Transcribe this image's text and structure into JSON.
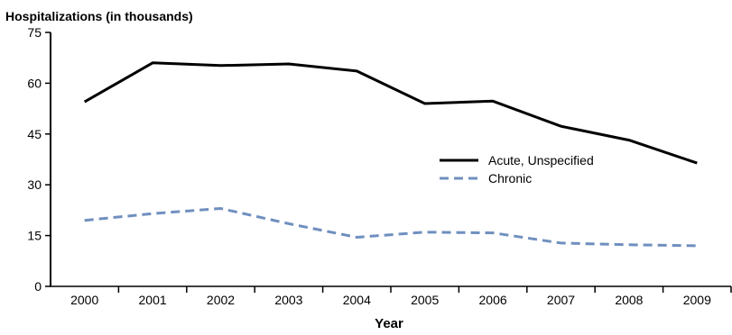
{
  "chart_data": {
    "type": "line",
    "title": "",
    "ylabel": "Hospitalizations (in thousands)",
    "xlabel": "Year",
    "ylim": [
      0,
      75
    ],
    "yticks": [
      "0",
      "15",
      "30",
      "45",
      "60",
      "75"
    ],
    "categories": [
      "2000",
      "2001",
      "2002",
      "2003",
      "2004",
      "2005",
      "2006",
      "2007",
      "2008",
      "2009"
    ],
    "series": [
      {
        "name": "Acute, Unspecified",
        "color": "#000000",
        "style": "solid",
        "values": [
          54.5,
          66.0,
          65.2,
          65.7,
          63.6,
          54.0,
          54.7,
          47.3,
          43.2,
          36.4
        ]
      },
      {
        "name": "Chronic",
        "color": "#6f8fbf",
        "style": "dashed",
        "values": [
          19.5,
          21.5,
          23.0,
          18.5,
          14.5,
          16.0,
          15.8,
          12.8,
          12.3,
          12.0
        ]
      }
    ],
    "grid": false,
    "legend": "right"
  }
}
